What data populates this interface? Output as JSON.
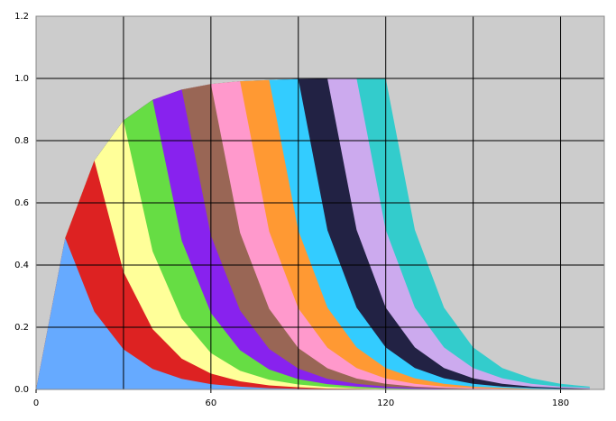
{
  "chart_data": {
    "type": "area",
    "x": [
      0,
      10,
      20,
      30,
      40,
      50,
      60,
      70,
      80,
      90,
      100,
      110,
      120,
      130,
      140,
      150,
      160,
      170,
      180,
      190
    ],
    "series": [
      {
        "color": "#66aaff",
        "values": [
          0,
          0.487,
          0.25,
          0.129,
          0.066,
          0.034,
          0.017,
          0.009,
          0.004,
          0.002,
          0.001,
          0,
          0,
          0,
          0,
          0,
          0,
          0,
          0,
          0
        ]
      },
      {
        "color": "#dd2222",
        "values": [
          0,
          0.487,
          0.736,
          0.378,
          0.194,
          0.099,
          0.051,
          0.026,
          0.013,
          0.007,
          0.003,
          0.002,
          0.001,
          0,
          0,
          0,
          0,
          0,
          0,
          0
        ]
      },
      {
        "color": "#ffff99",
        "values": [
          0,
          0.487,
          0.736,
          0.865,
          0.444,
          0.228,
          0.117,
          0.06,
          0.031,
          0.016,
          0.008,
          0.004,
          0.002,
          0.001,
          0,
          0,
          0,
          0,
          0,
          0
        ]
      },
      {
        "color": "#66dd44",
        "values": [
          0,
          0.487,
          0.736,
          0.865,
          0.931,
          0.478,
          0.246,
          0.126,
          0.064,
          0.033,
          0.017,
          0.009,
          0.004,
          0.002,
          0.001,
          0,
          0,
          0,
          0,
          0
        ]
      },
      {
        "color": "#8822ee",
        "values": [
          0,
          0.487,
          0.736,
          0.865,
          0.931,
          0.964,
          0.495,
          0.254,
          0.13,
          0.067,
          0.034,
          0.018,
          0.009,
          0.005,
          0.002,
          0.001,
          0,
          0,
          0,
          0
        ]
      },
      {
        "color": "#996655",
        "values": [
          0,
          0.487,
          0.736,
          0.865,
          0.931,
          0.964,
          0.982,
          0.504,
          0.259,
          0.133,
          0.068,
          0.035,
          0.018,
          0.009,
          0.005,
          0.002,
          0.001,
          0,
          0,
          0
        ]
      },
      {
        "color": "#ff99cc",
        "values": [
          0,
          0.487,
          0.736,
          0.865,
          0.931,
          0.964,
          0.982,
          0.991,
          0.508,
          0.261,
          0.134,
          0.069,
          0.035,
          0.018,
          0.009,
          0.005,
          0.002,
          0.001,
          0,
          0
        ]
      },
      {
        "color": "#ff9933",
        "values": [
          0,
          0.487,
          0.736,
          0.865,
          0.931,
          0.964,
          0.982,
          0.991,
          0.995,
          0.511,
          0.263,
          0.135,
          0.069,
          0.036,
          0.018,
          0.009,
          0.005,
          0.002,
          0.001,
          0
        ]
      },
      {
        "color": "#33ccff",
        "values": [
          0,
          0.487,
          0.736,
          0.865,
          0.931,
          0.964,
          0.982,
          0.991,
          0.995,
          0.998,
          0.512,
          0.263,
          0.135,
          0.069,
          0.036,
          0.018,
          0.009,
          0.005,
          0.002,
          0.001
        ]
      },
      {
        "color": "#222244",
        "values": [
          0,
          0.487,
          0.736,
          0.865,
          0.931,
          0.964,
          0.982,
          0.991,
          0.995,
          0.998,
          0.999,
          0.513,
          0.263,
          0.135,
          0.069,
          0.036,
          0.018,
          0.009,
          0.005,
          0.002
        ]
      },
      {
        "color": "#ccaaee",
        "values": [
          0,
          0.487,
          0.736,
          0.865,
          0.931,
          0.964,
          0.982,
          0.991,
          0.995,
          0.998,
          0.999,
          1,
          0.513,
          0.263,
          0.135,
          0.069,
          0.036,
          0.018,
          0.009,
          0.005
        ]
      },
      {
        "color": "#33cccc",
        "values": [
          0,
          0.487,
          0.736,
          0.865,
          0.931,
          0.964,
          0.982,
          0.991,
          0.995,
          0.998,
          0.999,
          1,
          1,
          0.513,
          0.263,
          0.135,
          0.069,
          0.036,
          0.018,
          0.009
        ]
      }
    ],
    "xlim": [
      0,
      195
    ],
    "ylim": [
      0,
      1.2
    ],
    "xticks": [
      0,
      60,
      120,
      180
    ],
    "xgrid": [
      0,
      30,
      60,
      90,
      120,
      150,
      180
    ],
    "yticks": [
      {
        "value": 0,
        "label": "0.0"
      },
      {
        "value": 0.2,
        "label": "0.2"
      },
      {
        "value": 0.4,
        "label": "0.4"
      },
      {
        "value": 0.6,
        "label": "0.6"
      },
      {
        "value": 0.8,
        "label": "0.8"
      },
      {
        "value": 1.0,
        "label": "1.0"
      },
      {
        "value": 1.2,
        "label": "1.2"
      }
    ],
    "grid": true,
    "background": "#cccccc"
  }
}
